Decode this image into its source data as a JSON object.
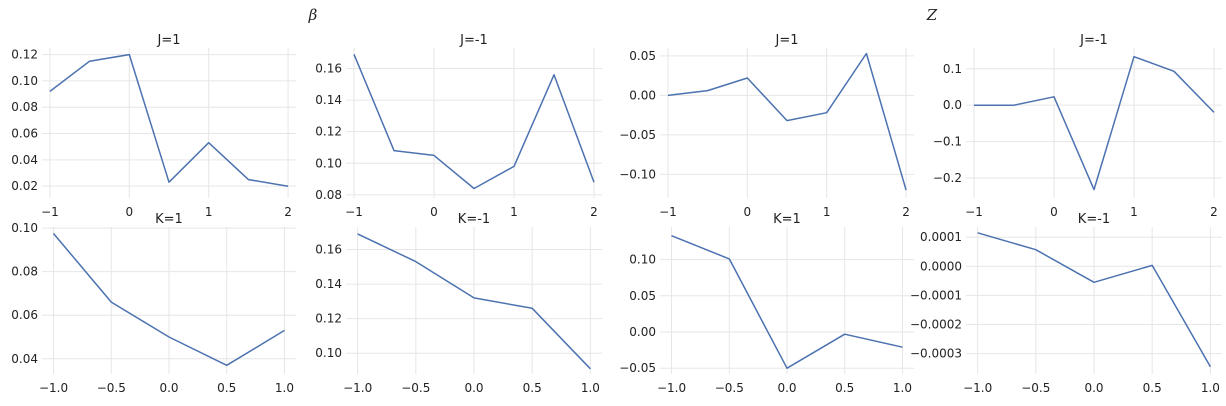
{
  "colors": {
    "line": "#4c72b0",
    "grid": "#e6e6e6",
    "text": "#222222"
  },
  "group_titles": [
    "β",
    "Z"
  ],
  "chart_data": [
    {
      "type": "line",
      "group": "β",
      "title": "J=1",
      "grid": true,
      "x": [
        -1,
        -0.5,
        0,
        0.5,
        1,
        1.5,
        2
      ],
      "series": [
        {
          "values": [
            0.092,
            0.115,
            0.12,
            0.023,
            0.053,
            0.025,
            0.02
          ]
        }
      ],
      "xlim": [
        -1.1,
        2.1
      ],
      "ylim": [
        0.011,
        0.125
      ],
      "xticks": [
        -1,
        0,
        1,
        2
      ],
      "xtick_labels": [
        "−1",
        "0",
        "1",
        "2"
      ],
      "yticks": [
        0.02,
        0.04,
        0.06,
        0.08,
        0.1,
        0.12
      ],
      "ytick_labels": [
        "0.02",
        "0.04",
        "0.06",
        "0.08",
        "0.10",
        "0.12"
      ]
    },
    {
      "type": "line",
      "group": "β",
      "title": "J=-1",
      "grid": true,
      "x": [
        -1,
        -0.5,
        0,
        0.5,
        1,
        1.5,
        2
      ],
      "series": [
        {
          "values": [
            0.169,
            0.108,
            0.105,
            0.084,
            0.098,
            0.156,
            0.088
          ]
        }
      ],
      "xlim": [
        -1.1,
        2.1
      ],
      "ylim": [
        0.078,
        0.173
      ],
      "xticks": [
        -1,
        0,
        1,
        2
      ],
      "xtick_labels": [
        "−1",
        "0",
        "1",
        "2"
      ],
      "yticks": [
        0.08,
        0.1,
        0.12,
        0.14,
        0.16
      ],
      "ytick_labels": [
        "0.08",
        "0.10",
        "0.12",
        "0.14",
        "0.16"
      ]
    },
    {
      "type": "line",
      "group": "Z",
      "title": "J=1",
      "grid": true,
      "x": [
        -1,
        -0.5,
        0,
        0.5,
        1,
        1.5,
        2
      ],
      "series": [
        {
          "values": [
            0.0,
            0.006,
            0.022,
            -0.032,
            -0.022,
            0.053,
            -0.12
          ]
        }
      ],
      "xlim": [
        -1.1,
        2.1
      ],
      "ylim": [
        -0.13,
        0.06
      ],
      "xticks": [
        -1,
        0,
        1,
        2
      ],
      "xtick_labels": [
        "−1",
        "0",
        "1",
        "2"
      ],
      "yticks": [
        -0.1,
        -0.05,
        0.0,
        0.05
      ],
      "ytick_labels": [
        "−0.10",
        "−0.05",
        "0.00",
        "0.05"
      ]
    },
    {
      "type": "line",
      "group": "Z",
      "title": "J=-1",
      "grid": true,
      "x": [
        -1,
        -0.5,
        0,
        0.5,
        1,
        1.5,
        2
      ],
      "series": [
        {
          "values": [
            0.0,
            0.0,
            0.023,
            -0.232,
            0.133,
            0.093,
            -0.02
          ]
        }
      ],
      "xlim": [
        -1.1,
        2.1
      ],
      "ylim": [
        -0.255,
        0.157
      ],
      "xticks": [
        -1,
        0,
        1,
        2
      ],
      "xtick_labels": [
        "−1",
        "0",
        "1",
        "2"
      ],
      "yticks": [
        -0.2,
        -0.1,
        0.0,
        0.1
      ],
      "ytick_labels": [
        "−0.2",
        "−0.1",
        "0.0",
        "0.1"
      ]
    },
    {
      "type": "line",
      "group": "β",
      "title": "K=1",
      "grid": true,
      "x": [
        -1,
        -0.5,
        0,
        0.5,
        1
      ],
      "series": [
        {
          "values": [
            0.0975,
            0.066,
            0.05,
            0.037,
            0.053
          ]
        }
      ],
      "xlim": [
        -1.1,
        1.1
      ],
      "ylim": [
        0.033,
        0.1005
      ],
      "xticks": [
        -1,
        -0.5,
        0,
        0.5,
        1
      ],
      "xtick_labels": [
        "−1.0",
        "−0.5",
        "0.0",
        "0.5",
        "1.0"
      ],
      "yticks": [
        0.04,
        0.06,
        0.08,
        0.1
      ],
      "ytick_labels": [
        "0.04",
        "0.06",
        "0.08",
        "0.10"
      ]
    },
    {
      "type": "line",
      "group": "β",
      "title": "K=-1",
      "grid": true,
      "x": [
        -1,
        -0.5,
        0,
        0.5,
        1
      ],
      "series": [
        {
          "values": [
            0.169,
            0.153,
            0.132,
            0.126,
            0.091
          ]
        }
      ],
      "xlim": [
        -1.1,
        1.1
      ],
      "ylim": [
        0.088,
        0.173
      ],
      "xticks": [
        -1,
        -0.5,
        0,
        0.5,
        1
      ],
      "xtick_labels": [
        "−1.0",
        "−0.5",
        "0.0",
        "0.5",
        "1.0"
      ],
      "yticks": [
        0.1,
        0.12,
        0.14,
        0.16
      ],
      "ytick_labels": [
        "0.10",
        "0.12",
        "0.14",
        "0.16"
      ]
    },
    {
      "type": "line",
      "group": "Z",
      "title": "K=1",
      "grid": true,
      "x": [
        -1,
        -0.5,
        0,
        0.5,
        1
      ],
      "series": [
        {
          "values": [
            0.133,
            0.101,
            -0.05,
            -0.003,
            -0.021
          ]
        }
      ],
      "xlim": [
        -1.1,
        1.1
      ],
      "ylim": [
        -0.058,
        0.145
      ],
      "xticks": [
        -1,
        -0.5,
        0,
        0.5,
        1
      ],
      "xtick_labels": [
        "−1.0",
        "−0.5",
        "0.0",
        "0.5",
        "1.0"
      ],
      "yticks": [
        -0.05,
        0.0,
        0.05,
        0.1
      ],
      "ytick_labels": [
        "−0.05",
        "0.00",
        "0.05",
        "0.10"
      ]
    },
    {
      "type": "line",
      "group": "Z",
      "title": "K=-1",
      "grid": true,
      "x": [
        -1,
        -0.5,
        0,
        0.5,
        1
      ],
      "series": [
        {
          "values": [
            0.000115,
            5.7e-05,
            -5.5e-05,
            3e-06,
            -0.000345
          ]
        }
      ],
      "xlim": [
        -1.1,
        1.1
      ],
      "ylim": [
        -0.00037,
        0.000135
      ],
      "xticks": [
        -1,
        -0.5,
        0,
        0.5,
        1
      ],
      "xtick_labels": [
        "−1.0",
        "−0.5",
        "0.0",
        "0.5",
        "1.0"
      ],
      "yticks": [
        -0.0003,
        -0.0002,
        -0.0001,
        0.0,
        0.0001
      ],
      "ytick_labels": [
        "−0.0003",
        "−0.0002",
        "−0.0001",
        "0.0000",
        "0.0001"
      ]
    }
  ]
}
